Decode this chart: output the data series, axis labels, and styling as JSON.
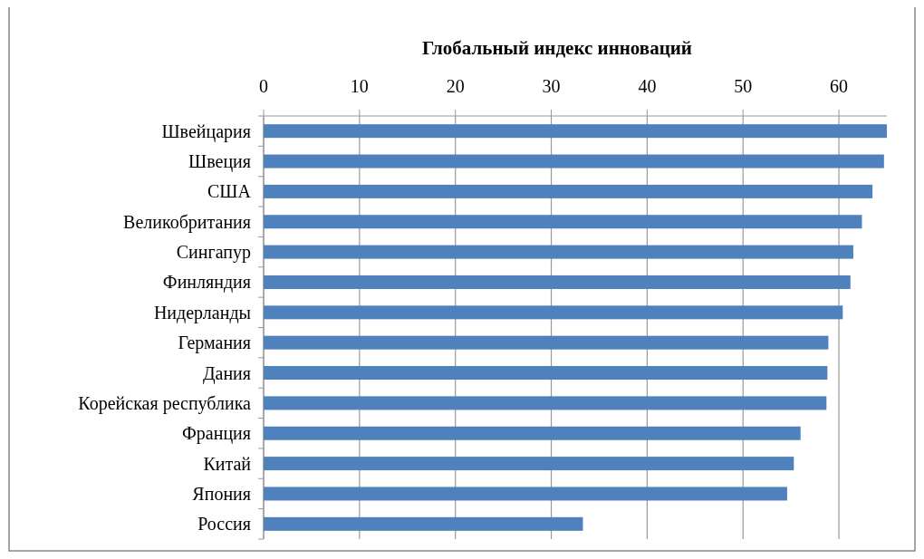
{
  "chart_data": {
    "type": "bar",
    "orientation": "horizontal",
    "title": "Глобальный индекс инноваций",
    "categories": [
      "Швейцария",
      "Швеция",
      "США",
      "Великобритания",
      "Сингапур",
      "Финляндия",
      "Нидерланды",
      "Германия",
      "Дания",
      "Корейская республика",
      "Франция",
      "Китай",
      "Япония",
      "Россия"
    ],
    "values": [
      65.0,
      64.7,
      63.5,
      62.4,
      61.5,
      61.2,
      60.4,
      58.9,
      58.8,
      58.7,
      56.0,
      55.3,
      54.6,
      33.3
    ],
    "color": "#4f81bd",
    "xlim": [
      0,
      65
    ],
    "xticks": [
      0,
      10,
      20,
      30,
      40,
      50,
      60
    ],
    "grid": "x"
  }
}
